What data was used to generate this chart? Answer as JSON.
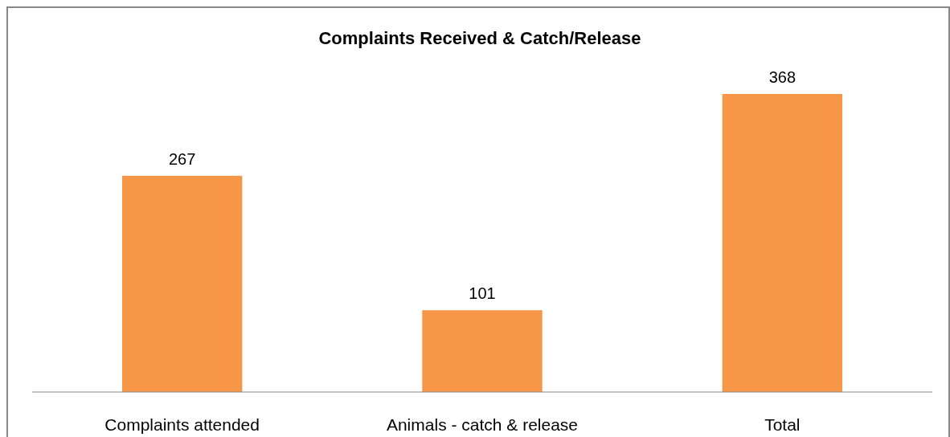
{
  "chart_data": {
    "type": "bar",
    "title": "Complaints Received & Catch/Release",
    "categories": [
      "Complaints attended",
      "Animals - catch & release",
      "Total"
    ],
    "values": [
      267,
      101,
      368
    ],
    "color": "#f79646",
    "data_labels": true
  }
}
